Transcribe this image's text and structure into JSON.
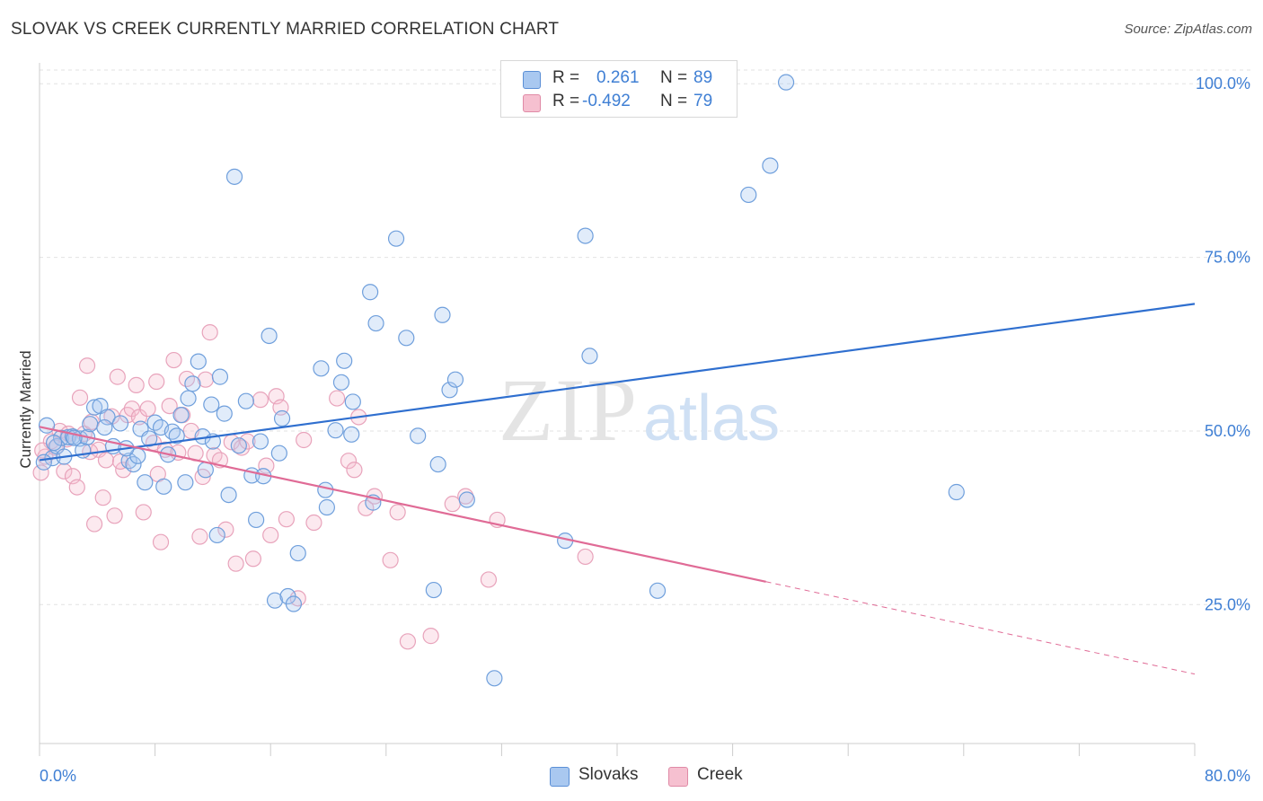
{
  "title": "SLOVAK VS CREEK CURRENTLY MARRIED CORRELATION CHART",
  "source": "Source: ZipAtlas.com",
  "watermark": {
    "zip": "ZIP",
    "atlas": "atlas"
  },
  "legend": {
    "r_label": "R =",
    "n_label": "N =",
    "rows": [
      {
        "r": "0.261",
        "n": "89",
        "swatch": "#a9c8f0",
        "swatch_border": "#5b8fd6"
      },
      {
        "r": "-0.492",
        "n": "79",
        "swatch": "#f6c0d0",
        "swatch_border": "#e08aa6"
      }
    ]
  },
  "bottom_legend": [
    "Slovaks",
    "Creek"
  ],
  "colors": {
    "blue": "#3f7fd4",
    "blue_line": "#2f6fcf",
    "pink": "#e07ca0",
    "pink_line": "#e06b96",
    "axis_text": "#3f7fd4"
  },
  "chart_data": {
    "type": "scatter",
    "title": "SLOVAK VS CREEK CURRENTLY MARRIED CORRELATION CHART",
    "xlabel": "",
    "ylabel": "Currently Married",
    "xlim": [
      0,
      80
    ],
    "ylim": [
      5,
      103
    ],
    "x_tick_labels": [
      "0.0%",
      "80.0%"
    ],
    "y_tick_labels": [
      "25.0%",
      "50.0%",
      "75.0%",
      "100.0%"
    ],
    "y_ticks": [
      25,
      50,
      75,
      100
    ],
    "grid": true,
    "series": [
      {
        "name": "Slovaks",
        "color": "#3f7fd4",
        "r": 0.261,
        "n": 89,
        "trend": {
          "x": [
            0,
            80
          ],
          "y": [
            45.8,
            68.3
          ]
        },
        "points": [
          [
            0.5,
            50.8
          ],
          [
            0.9,
            46.1
          ],
          [
            1.2,
            47.8
          ],
          [
            1.5,
            49.0
          ],
          [
            1.7,
            46.3
          ],
          [
            2.0,
            49.1
          ],
          [
            2.3,
            49.2
          ],
          [
            2.8,
            48.9
          ],
          [
            3.0,
            47.2
          ],
          [
            3.3,
            49.1
          ],
          [
            3.5,
            51.0
          ],
          [
            3.8,
            53.4
          ],
          [
            4.2,
            53.6
          ],
          [
            4.7,
            52.0
          ],
          [
            5.1,
            47.8
          ],
          [
            5.6,
            51.1
          ],
          [
            6.2,
            45.7
          ],
          [
            6.5,
            45.2
          ],
          [
            6.8,
            46.4
          ],
          [
            7.0,
            50.3
          ],
          [
            7.3,
            42.6
          ],
          [
            7.6,
            48.9
          ],
          [
            8.0,
            51.2
          ],
          [
            8.4,
            50.5
          ],
          [
            8.6,
            42.0
          ],
          [
            8.9,
            46.6
          ],
          [
            9.2,
            49.9
          ],
          [
            9.5,
            49.3
          ],
          [
            9.8,
            52.3
          ],
          [
            10.1,
            42.6
          ],
          [
            10.3,
            54.7
          ],
          [
            10.6,
            56.8
          ],
          [
            11.0,
            60.0
          ],
          [
            11.3,
            49.2
          ],
          [
            11.5,
            44.4
          ],
          [
            11.9,
            53.8
          ],
          [
            12.3,
            35.0
          ],
          [
            12.5,
            57.8
          ],
          [
            12.8,
            52.5
          ],
          [
            13.1,
            40.8
          ],
          [
            13.5,
            86.6
          ],
          [
            13.8,
            47.9
          ],
          [
            14.3,
            54.3
          ],
          [
            14.7,
            43.6
          ],
          [
            15.0,
            37.2
          ],
          [
            15.3,
            48.5
          ],
          [
            15.5,
            43.5
          ],
          [
            15.9,
            63.7
          ],
          [
            16.3,
            25.6
          ],
          [
            16.6,
            46.8
          ],
          [
            16.8,
            51.8
          ],
          [
            17.2,
            26.2
          ],
          [
            17.6,
            25.1
          ],
          [
            17.9,
            32.4
          ],
          [
            19.5,
            59.0
          ],
          [
            19.8,
            41.5
          ],
          [
            19.9,
            39.0
          ],
          [
            20.5,
            50.1
          ],
          [
            20.9,
            57.0
          ],
          [
            21.1,
            60.1
          ],
          [
            21.6,
            49.5
          ],
          [
            21.7,
            54.2
          ],
          [
            22.9,
            70.0
          ],
          [
            23.1,
            39.7
          ],
          [
            23.3,
            65.5
          ],
          [
            24.7,
            77.7
          ],
          [
            25.4,
            63.4
          ],
          [
            26.2,
            49.3
          ],
          [
            27.3,
            27.1
          ],
          [
            27.6,
            45.2
          ],
          [
            27.9,
            66.7
          ],
          [
            28.4,
            55.9
          ],
          [
            28.8,
            57.4
          ],
          [
            29.6,
            40.1
          ],
          [
            31.5,
            14.4
          ],
          [
            36.4,
            34.2
          ],
          [
            37.8,
            78.1
          ],
          [
            38.1,
            60.8
          ],
          [
            42.8,
            27.0
          ],
          [
            49.1,
            84.0
          ],
          [
            50.6,
            88.2
          ],
          [
            51.7,
            100.2
          ],
          [
            63.5,
            41.2
          ],
          [
            0.3,
            45.5
          ],
          [
            1.0,
            48.3
          ],
          [
            2.4,
            49.0
          ],
          [
            4.5,
            50.5
          ],
          [
            6.0,
            47.5
          ],
          [
            12.0,
            48.5
          ]
        ]
      },
      {
        "name": "Creek",
        "color": "#e07ca0",
        "r": -0.492,
        "n": 79,
        "trend": {
          "x": [
            0,
            50.3
          ],
          "y": [
            50.6,
            28.3
          ]
        },
        "trend_dashed": {
          "x": [
            50.3,
            80
          ],
          "y": [
            28.3,
            15.0
          ]
        },
        "points": [
          [
            0.1,
            44.0
          ],
          [
            0.4,
            46.3
          ],
          [
            0.8,
            48.5
          ],
          [
            1.1,
            47.6
          ],
          [
            1.4,
            50.0
          ],
          [
            1.7,
            44.2
          ],
          [
            2.0,
            49.6
          ],
          [
            2.3,
            43.5
          ],
          [
            2.6,
            41.9
          ],
          [
            2.8,
            54.8
          ],
          [
            3.1,
            49.6
          ],
          [
            3.3,
            59.4
          ],
          [
            3.6,
            51.3
          ],
          [
            3.8,
            36.6
          ],
          [
            4.1,
            47.3
          ],
          [
            4.4,
            40.4
          ],
          [
            4.6,
            45.8
          ],
          [
            5.0,
            52.1
          ],
          [
            5.2,
            37.8
          ],
          [
            5.4,
            57.8
          ],
          [
            5.8,
            44.4
          ],
          [
            6.1,
            52.3
          ],
          [
            6.4,
            53.2
          ],
          [
            6.7,
            56.6
          ],
          [
            6.9,
            52.0
          ],
          [
            7.2,
            38.3
          ],
          [
            7.5,
            53.2
          ],
          [
            7.9,
            48.3
          ],
          [
            8.1,
            57.1
          ],
          [
            8.4,
            34.0
          ],
          [
            8.7,
            47.3
          ],
          [
            9.0,
            53.6
          ],
          [
            9.3,
            60.2
          ],
          [
            9.6,
            46.9
          ],
          [
            9.9,
            52.3
          ],
          [
            10.2,
            57.5
          ],
          [
            10.5,
            50.0
          ],
          [
            10.8,
            46.8
          ],
          [
            11.1,
            34.8
          ],
          [
            11.3,
            43.4
          ],
          [
            11.5,
            57.4
          ],
          [
            11.8,
            64.2
          ],
          [
            12.1,
            46.5
          ],
          [
            12.5,
            45.8
          ],
          [
            12.9,
            35.8
          ],
          [
            13.3,
            48.4
          ],
          [
            13.6,
            30.9
          ],
          [
            14.0,
            47.6
          ],
          [
            14.4,
            48.5
          ],
          [
            14.8,
            31.6
          ],
          [
            15.3,
            54.5
          ],
          [
            15.7,
            45.0
          ],
          [
            16.0,
            35.0
          ],
          [
            16.4,
            55.0
          ],
          [
            16.7,
            53.4
          ],
          [
            17.1,
            37.3
          ],
          [
            17.9,
            25.9
          ],
          [
            18.3,
            48.7
          ],
          [
            19.0,
            36.8
          ],
          [
            20.6,
            54.7
          ],
          [
            21.4,
            45.7
          ],
          [
            21.8,
            44.4
          ],
          [
            22.1,
            52.0
          ],
          [
            22.6,
            38.9
          ],
          [
            23.2,
            40.6
          ],
          [
            24.3,
            31.4
          ],
          [
            24.8,
            38.3
          ],
          [
            25.5,
            19.7
          ],
          [
            27.1,
            20.5
          ],
          [
            28.6,
            39.5
          ],
          [
            29.5,
            40.6
          ],
          [
            31.1,
            28.6
          ],
          [
            31.7,
            37.2
          ],
          [
            37.8,
            31.9
          ],
          [
            0.2,
            47.2
          ],
          [
            1.9,
            48.8
          ],
          [
            3.5,
            47.0
          ],
          [
            5.6,
            45.6
          ],
          [
            8.2,
            43.8
          ]
        ]
      }
    ]
  }
}
